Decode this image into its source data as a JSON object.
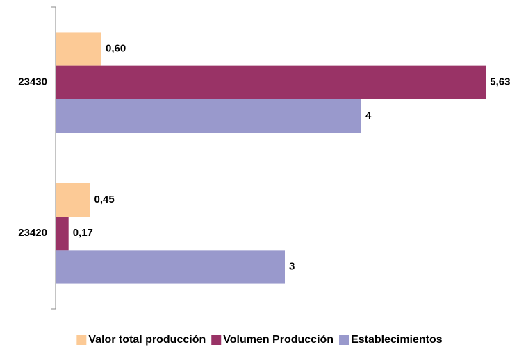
{
  "chart_data": {
    "type": "hbar",
    "categories": [
      "23430",
      "23420"
    ],
    "series": [
      {
        "name": "Valor total producción",
        "color": "#fcca96",
        "values": [
          0.6,
          0.45
        ],
        "value_labels": [
          "0,60",
          "0,45"
        ]
      },
      {
        "name": "Volumen Producción",
        "color": "#993366",
        "values": [
          5.63,
          0.17
        ],
        "value_labels": [
          "5,63",
          "0,17"
        ]
      },
      {
        "name": "Establecimientos",
        "color": "#9999cc",
        "values": [
          4,
          3
        ],
        "value_labels": [
          "4",
          "3"
        ]
      }
    ],
    "xlim": [
      0,
      6
    ],
    "legend": "bottom"
  }
}
